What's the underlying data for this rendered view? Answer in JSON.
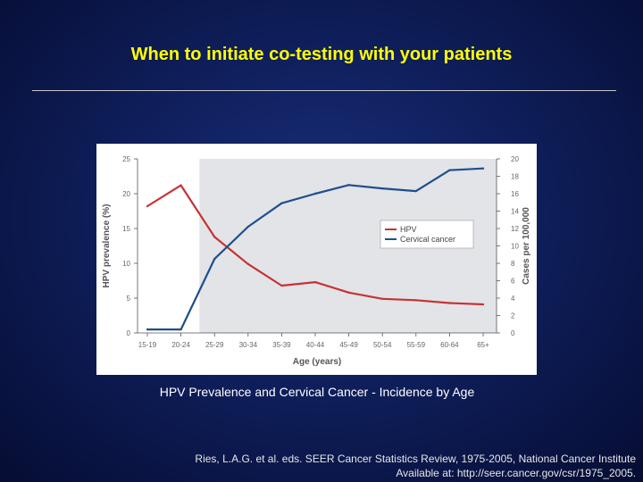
{
  "slide": {
    "title": "When to initiate co-testing with your patients",
    "caption": "HPV Prevalence and Cervical Cancer - Incidence by Age",
    "citation_line1": "Ries, L.A.G. et al. eds. SEER Cancer Statistics Review, 1975-2005, National Cancer Institute",
    "citation_line2": "Available at: http://seer.cancer.gov/csr/1975_2005."
  },
  "colors": {
    "hpv": "#c83232",
    "cervical_cancer": "#1f4e8c",
    "shaded_region": "#e2e4e8",
    "axis": "#555555"
  },
  "chart_data": {
    "type": "line",
    "xlabel": "Age (years)",
    "ylabel_left": "HPV prevalence (%)",
    "ylabel_right": "Cases per 100,000",
    "categories": [
      "15-19",
      "20-24",
      "25-29",
      "30-34",
      "35-39",
      "40-44",
      "45-49",
      "50-54",
      "55-59",
      "60-64",
      "65+"
    ],
    "ylim_left": [
      0,
      25
    ],
    "yticks_left": [
      0,
      5,
      10,
      15,
      20,
      25
    ],
    "ylim_right": [
      0,
      20
    ],
    "yticks_right": [
      0,
      2,
      4,
      6,
      8,
      10,
      12,
      14,
      16,
      18,
      20
    ],
    "shaded_from_category": "25-29",
    "series": [
      {
        "name": "HPV",
        "axis": "left",
        "values": [
          18.2,
          21.2,
          13.8,
          9.9,
          6.8,
          7.3,
          5.8,
          4.9,
          4.7,
          4.3,
          4.1
        ]
      },
      {
        "name": "Cervical cancer",
        "axis": "right",
        "values": [
          0.4,
          0.4,
          8.5,
          12.2,
          14.9,
          16.0,
          17.0,
          16.6,
          16.3,
          18.7,
          18.9
        ]
      }
    ],
    "legend": {
      "placement": "center-right",
      "entries": [
        "HPV",
        "Cervical cancer"
      ]
    },
    "grid": false
  }
}
